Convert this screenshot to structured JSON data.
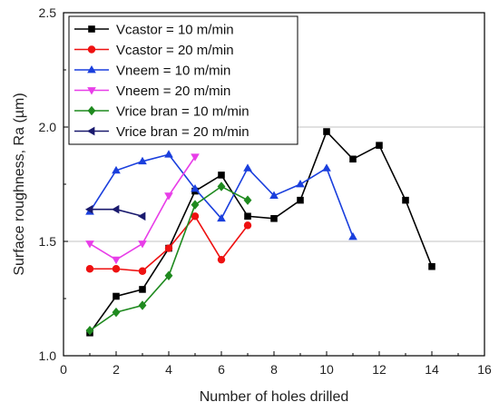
{
  "chart_data": {
    "type": "line",
    "title": "",
    "xlabel": "Number of holes drilled",
    "ylabel": "Surface roughness, Ra (µm)",
    "xlim": [
      0,
      16
    ],
    "ylim": [
      1.0,
      2.5
    ],
    "xticks": [
      0,
      2,
      4,
      6,
      8,
      10,
      12,
      14,
      16
    ],
    "yticks": [
      1.0,
      1.5,
      2.0,
      2.5
    ],
    "xtick_labels": [
      "0",
      "2",
      "4",
      "6",
      "8",
      "10",
      "12",
      "14",
      "16"
    ],
    "ytick_labels": [
      "1.0",
      "1.5",
      "2.0",
      "2.5"
    ],
    "grid": "horizontal",
    "legend_position": "top-left",
    "series": [
      {
        "name": "Vcastor = 10 m/min",
        "color": "#000000",
        "marker": "square",
        "x": [
          1,
          2,
          3,
          4,
          5,
          6,
          7,
          8,
          9,
          10,
          11,
          12,
          13,
          14
        ],
        "y": [
          1.1,
          1.26,
          1.29,
          1.47,
          1.72,
          1.79,
          1.61,
          1.6,
          1.68,
          1.98,
          1.86,
          1.92,
          1.68,
          1.39
        ]
      },
      {
        "name": "Vcastor = 20 m/min",
        "color": "#ee1111",
        "marker": "circle",
        "x": [
          1,
          2,
          3,
          4,
          5,
          6,
          7
        ],
        "y": [
          1.38,
          1.38,
          1.37,
          1.47,
          1.61,
          1.42,
          1.57
        ]
      },
      {
        "name": "Vneem = 10 m/min",
        "color": "#1a3fdd",
        "marker": "triangle-up",
        "x": [
          1,
          2,
          3,
          4,
          5,
          6,
          7,
          8,
          9,
          10,
          11
        ],
        "y": [
          1.63,
          1.81,
          1.85,
          1.88,
          1.73,
          1.6,
          1.82,
          1.7,
          1.75,
          1.82,
          1.52
        ]
      },
      {
        "name": "Vneem = 20 m/min",
        "color": "#e83ee8",
        "marker": "triangle-down",
        "x": [
          1,
          2,
          3,
          4,
          5
        ],
        "y": [
          1.49,
          1.42,
          1.49,
          1.7,
          1.87
        ]
      },
      {
        "name": "Vrice bran = 10 m/min",
        "color": "#1f8a1f",
        "marker": "diamond",
        "x": [
          1,
          2,
          3,
          4,
          5,
          6,
          7
        ],
        "y": [
          1.11,
          1.19,
          1.22,
          1.35,
          1.66,
          1.74,
          1.68
        ]
      },
      {
        "name": "Vrice bran = 20 m/min",
        "color": "#1a1a6e",
        "marker": "triangle-left",
        "x": [
          1,
          2,
          3
        ],
        "y": [
          1.64,
          1.64,
          1.61
        ]
      }
    ]
  }
}
